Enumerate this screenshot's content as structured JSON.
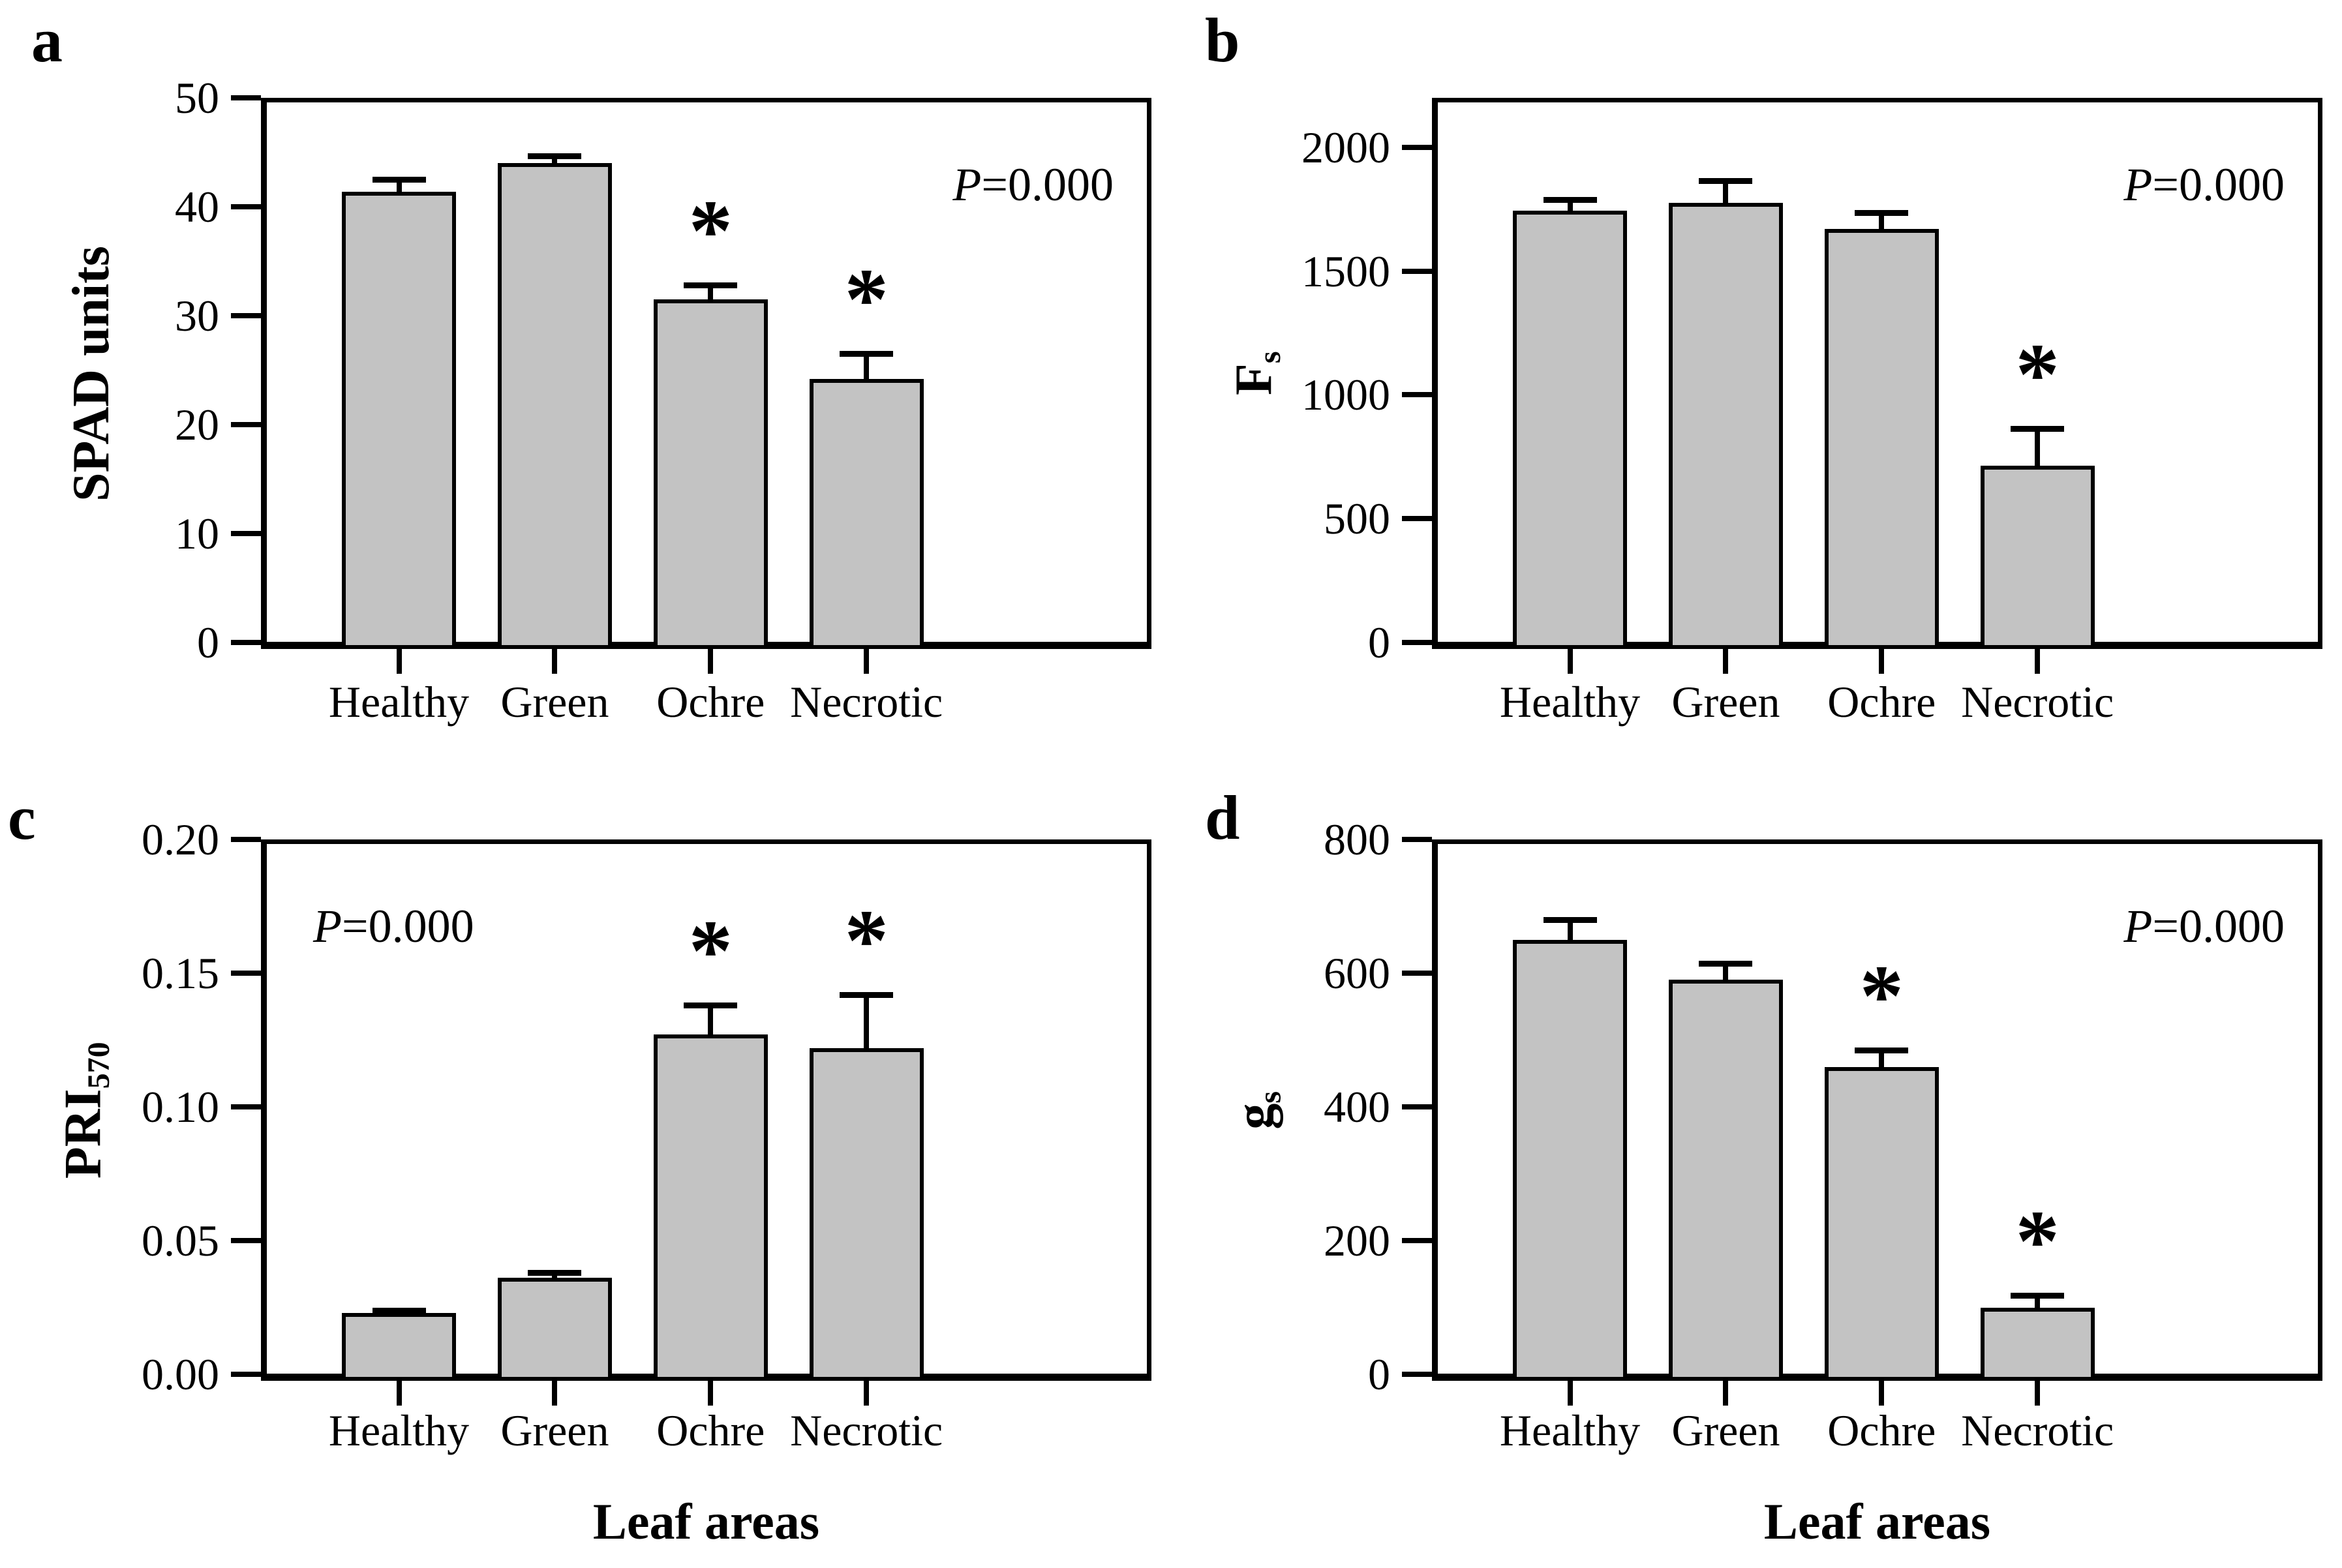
{
  "figure": {
    "background": "#ffffff",
    "bar_fill": "#c3c3c3",
    "bar_border": "#000000",
    "sig_marker": "*"
  },
  "chart_data": [
    {
      "panel": "a",
      "type": "bar",
      "categories": [
        "Healthy",
        "Green",
        "Ochre",
        "Necrotic"
      ],
      "values": [
        41.4,
        44.0,
        31.5,
        24.2
      ],
      "errors": [
        1.1,
        0.7,
        1.3,
        2.3
      ],
      "significant": [
        false,
        false,
        true,
        true
      ],
      "ylabel_main": "SPAD units",
      "ylabel_sub": "",
      "xlabel": "",
      "p_italic": "P",
      "p_rest": "=0.000",
      "p_position": "top-right",
      "ylim": [
        0,
        50
      ],
      "ytick_values": [
        0,
        10,
        20,
        30,
        40,
        50
      ],
      "ytick_labels": [
        "0",
        "10",
        "20",
        "30",
        "40",
        "50"
      ],
      "grid": false,
      "legend": false
    },
    {
      "panel": "b",
      "type": "bar",
      "categories": [
        "Healthy",
        "Green",
        "Ochre",
        "Necrotic"
      ],
      "values": [
        1745,
        1775,
        1670,
        715
      ],
      "errors": [
        45,
        90,
        65,
        150
      ],
      "significant": [
        false,
        false,
        false,
        true
      ],
      "ylabel_main": "F",
      "ylabel_sub": "s",
      "xlabel": "",
      "p_italic": "P",
      "p_rest": "=0.000",
      "p_position": "top-right",
      "ylim": [
        0,
        2200
      ],
      "ytick_values": [
        0,
        500,
        1000,
        1500,
        2000
      ],
      "ytick_labels": [
        "0",
        "500",
        "1000",
        "1500",
        "2000"
      ],
      "grid": false,
      "legend": false
    },
    {
      "panel": "c",
      "type": "bar",
      "categories": [
        "Healthy",
        "Green",
        "Ochre",
        "Necrotic"
      ],
      "values": [
        0.023,
        0.036,
        0.127,
        0.122
      ],
      "errors": [
        0.001,
        0.002,
        0.011,
        0.02
      ],
      "significant": [
        false,
        false,
        true,
        true
      ],
      "ylabel_main": "PRI",
      "ylabel_sub": "570",
      "xlabel": "Leaf areas",
      "p_italic": "P",
      "p_rest": "=0.000",
      "p_position": "top-left",
      "ylim": [
        0,
        0.2
      ],
      "ytick_values": [
        0,
        0.05,
        0.1,
        0.15,
        0.2
      ],
      "ytick_labels": [
        "0.00",
        "0.05",
        "0.10",
        "0.15",
        "0.20"
      ],
      "grid": false,
      "legend": false
    },
    {
      "panel": "d",
      "type": "bar",
      "categories": [
        "Healthy",
        "Green",
        "Ochre",
        "Necrotic"
      ],
      "values": [
        650,
        590,
        460,
        100
      ],
      "errors": [
        30,
        25,
        25,
        18
      ],
      "significant": [
        false,
        false,
        true,
        true
      ],
      "ylabel_main": "g",
      "ylabel_sub": "s",
      "xlabel": "Leaf areas",
      "p_italic": "P",
      "p_rest": "=0.000",
      "p_position": "top-right",
      "ylim": [
        0,
        800
      ],
      "ytick_values": [
        0,
        200,
        400,
        600,
        800
      ],
      "ytick_labels": [
        "0",
        "200",
        "400",
        "600",
        "800"
      ],
      "grid": false,
      "legend": false
    }
  ]
}
